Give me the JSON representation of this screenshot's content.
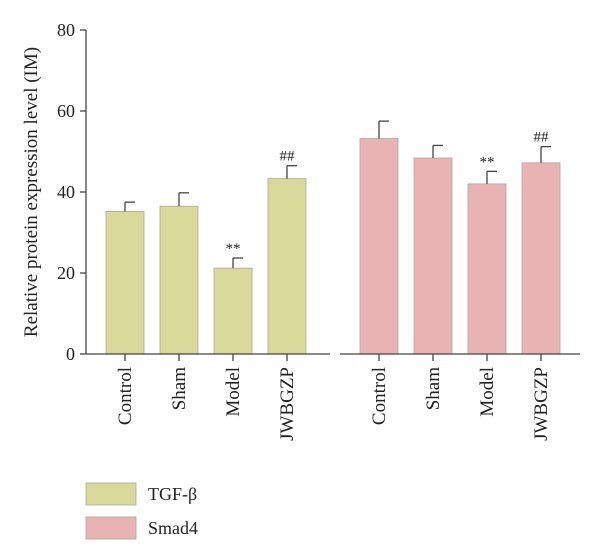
{
  "chart_data": {
    "type": "bar",
    "ylabel": "Relative protein expression level (IM)",
    "ylim": [
      0,
      80
    ],
    "yticks": [
      0,
      20,
      40,
      60,
      80
    ],
    "grid": false,
    "legend_position": "bottom-left",
    "categories": [
      "Control",
      "Sham",
      "Model",
      "JWBGZP"
    ],
    "series": [
      {
        "name": "TGF-β",
        "color": "#d9d99a",
        "values": [
          35.2,
          36.5,
          21.2,
          43.3
        ],
        "errors": [
          2.3,
          3.3,
          2.5,
          3.2
        ],
        "annotations": [
          "",
          "",
          "**",
          "##"
        ]
      },
      {
        "name": "Smad4",
        "color": "#e9b3b3",
        "values": [
          53.2,
          48.4,
          42.0,
          47.2
        ],
        "errors": [
          4.3,
          3.1,
          3.1,
          4.0
        ],
        "annotations": [
          "",
          "",
          "**",
          "##"
        ]
      }
    ]
  }
}
